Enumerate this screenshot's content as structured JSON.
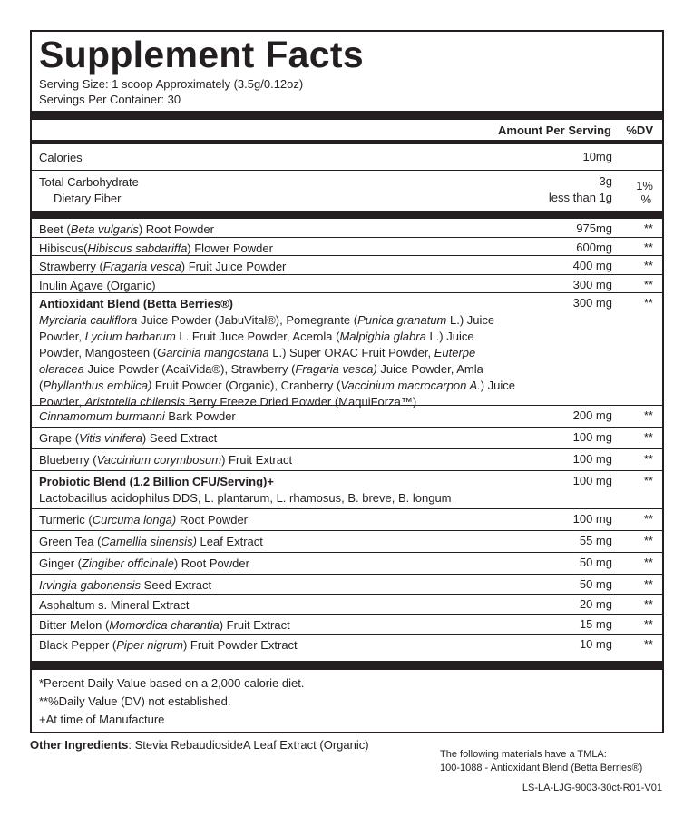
{
  "title": "Supplement Facts",
  "serving_size": "Serving Size: 1 scoop Approximately (3.5g/0.12oz)",
  "servings_per_container": "Servings Per Container: 30",
  "header": {
    "amount": "Amount Per Serving",
    "dv": "%DV"
  },
  "calories": {
    "label": "Calories",
    "amount": "10mg"
  },
  "carb": {
    "label": "Total Carbohydrate",
    "amount": "3g",
    "dv": "1%",
    "fiber_label": "Dietary Fiber",
    "fiber_amount": "less than 1g",
    "fiber_dv": "%"
  },
  "ingredients": [
    {
      "h": 20,
      "segs": [
        {
          "t": "Beet ("
        },
        {
          "t": "Beta vulgaris",
          "i": 1
        },
        {
          "t": ") Root Powder"
        }
      ],
      "amount": "975mg",
      "dv": "**"
    },
    {
      "h": 20,
      "segs": [
        {
          "t": "Hibiscus("
        },
        {
          "t": "Hibiscus sabdariffa",
          "i": 1
        },
        {
          "t": ") Flower Powder"
        }
      ],
      "amount": "600mg",
      "dv": "**"
    },
    {
      "h": 21,
      "segs": [
        {
          "t": "Strawberry ("
        },
        {
          "t": "Fragaria vesca",
          "i": 1
        },
        {
          "t": ") Fruit Juice Powder"
        }
      ],
      "amount": "400 mg",
      "dv": "**"
    },
    {
      "h": 20,
      "segs": [
        {
          "t": "Inulin Agave (Organic)"
        }
      ],
      "amount": "300 mg",
      "dv": "**"
    },
    {
      "h": 124,
      "segs": [
        {
          "t": "Antioxidant Blend (Betta Berries®)",
          "b": 1
        },
        {
          "br": 1
        },
        {
          "t": "Myrciaria cauliflora",
          "i": 1
        },
        {
          "t": " Juice Powder (JabuVital®), Pomegrante ("
        },
        {
          "t": "Punica granatum",
          "i": 1
        },
        {
          "t": " L.) Juice Powder, "
        },
        {
          "t": "Lycium barbarum",
          "i": 1
        },
        {
          "t": " L. Fruit Juce Powder, Acerola ("
        },
        {
          "t": "Malpighia glabra",
          "i": 1
        },
        {
          "t": " L.) Juice Powder, Mangosteen ("
        },
        {
          "t": "Garcinia mangostana",
          "i": 1
        },
        {
          "t": " L.) Super ORAC Fruit Powder, "
        },
        {
          "t": "Euterpe oleracea",
          "i": 1
        },
        {
          "t": " Juice Powder (AcaiVida®), Strawberry ("
        },
        {
          "t": "Fragaria vesca)",
          "i": 1
        },
        {
          "t": " Juice Powder, Amla ("
        },
        {
          "t": "Phyllanthus emblica)",
          "i": 1
        },
        {
          "t": " Fruit Powder (Organic), Cranberry ("
        },
        {
          "t": "Vaccinium macrocarpon A.",
          "i": 1
        },
        {
          "t": ") Juice Powder, "
        },
        {
          "t": "Aristotelia chilensis",
          "i": 1
        },
        {
          "t": " Berry Freeze Dried Powder (MaquiForza™)"
        }
      ],
      "amount": "300 mg",
      "dv": "**"
    },
    {
      "h": 24,
      "segs": [
        {
          "t": "Cinnamomum burmanni",
          "i": 1
        },
        {
          "t": " Bark Powder"
        }
      ],
      "amount": "200 mg",
      "dv": "**"
    },
    {
      "h": 24,
      "segs": [
        {
          "t": "Grape ("
        },
        {
          "t": "Vitis vinifera",
          "i": 1
        },
        {
          "t": ") Seed Extract"
        }
      ],
      "amount": "100 mg",
      "dv": "**"
    },
    {
      "h": 24,
      "segs": [
        {
          "t": "Blueberry ("
        },
        {
          "t": "Vaccinium corymbosum",
          "i": 1
        },
        {
          "t": ") Fruit Extract"
        }
      ],
      "amount": "100 mg",
      "dv": "**"
    },
    {
      "h": 42,
      "segs": [
        {
          "t": "Probiotic Blend (1.2 Billion CFU/Serving)+",
          "b": 1
        },
        {
          "br": 1
        },
        {
          "t": "Lactobacillus acidophilus DDS, L. plantarum, L. rhamosus, B. breve, B. longum"
        }
      ],
      "amount": "100 mg",
      "dv": "**"
    },
    {
      "h": 24,
      "segs": [
        {
          "t": "Turmeric ("
        },
        {
          "t": "Curcuma longa)",
          "i": 1
        },
        {
          "t": " Root Powder"
        }
      ],
      "amount": "100 mg",
      "dv": "**"
    },
    {
      "h": 24,
      "segs": [
        {
          "t": "Green Tea ("
        },
        {
          "t": "Camellia sinensis)",
          "i": 1
        },
        {
          "t": " Leaf Extract"
        }
      ],
      "amount": "55 mg",
      "dv": "**"
    },
    {
      "h": 24,
      "segs": [
        {
          "t": "Ginger ("
        },
        {
          "t": "Zingiber officinale",
          "i": 1
        },
        {
          "t": ") Root Powder"
        }
      ],
      "amount": "50 mg",
      "dv": "**"
    },
    {
      "h": 22,
      "segs": [
        {
          "t": "Irvingia gabonensis",
          "i": 1
        },
        {
          "t": " Seed Extract"
        }
      ],
      "amount": "50 mg",
      "dv": "**"
    },
    {
      "h": 22,
      "segs": [
        {
          "t": "Asphaltum s. Mineral Extract"
        }
      ],
      "amount": "20 mg",
      "dv": "**"
    },
    {
      "h": 22,
      "segs": [
        {
          "t": "Bitter Melon ("
        },
        {
          "t": "Momordica charantia",
          "i": 1
        },
        {
          "t": ") Fruit Extract"
        }
      ],
      "amount": "15 mg",
      "dv": "**"
    },
    {
      "h": 24,
      "segs": [
        {
          "t": "Black Pepper ("
        },
        {
          "t": "Piper nigrum",
          "i": 1
        },
        {
          "t": ") Fruit Powder Extract"
        }
      ],
      "amount": "10 mg",
      "dv": "**"
    }
  ],
  "footnotes": [
    "*Percent Daily Value based on a 2,000 calorie diet.",
    "**%Daily Value (DV) not established.",
    "+At time of Manufacture"
  ],
  "other": {
    "label": "Other Ingredients",
    "text": ": Stevia RebaudiosideA Leaf Extract (Organic)"
  },
  "tmla": {
    "line1": "The following materials have a TMLA:",
    "line2": "100-1088 - Antioxidant Blend (Betta Berries®)"
  },
  "code": "LS-LA-LJG-9003-30ct-R01-V01"
}
